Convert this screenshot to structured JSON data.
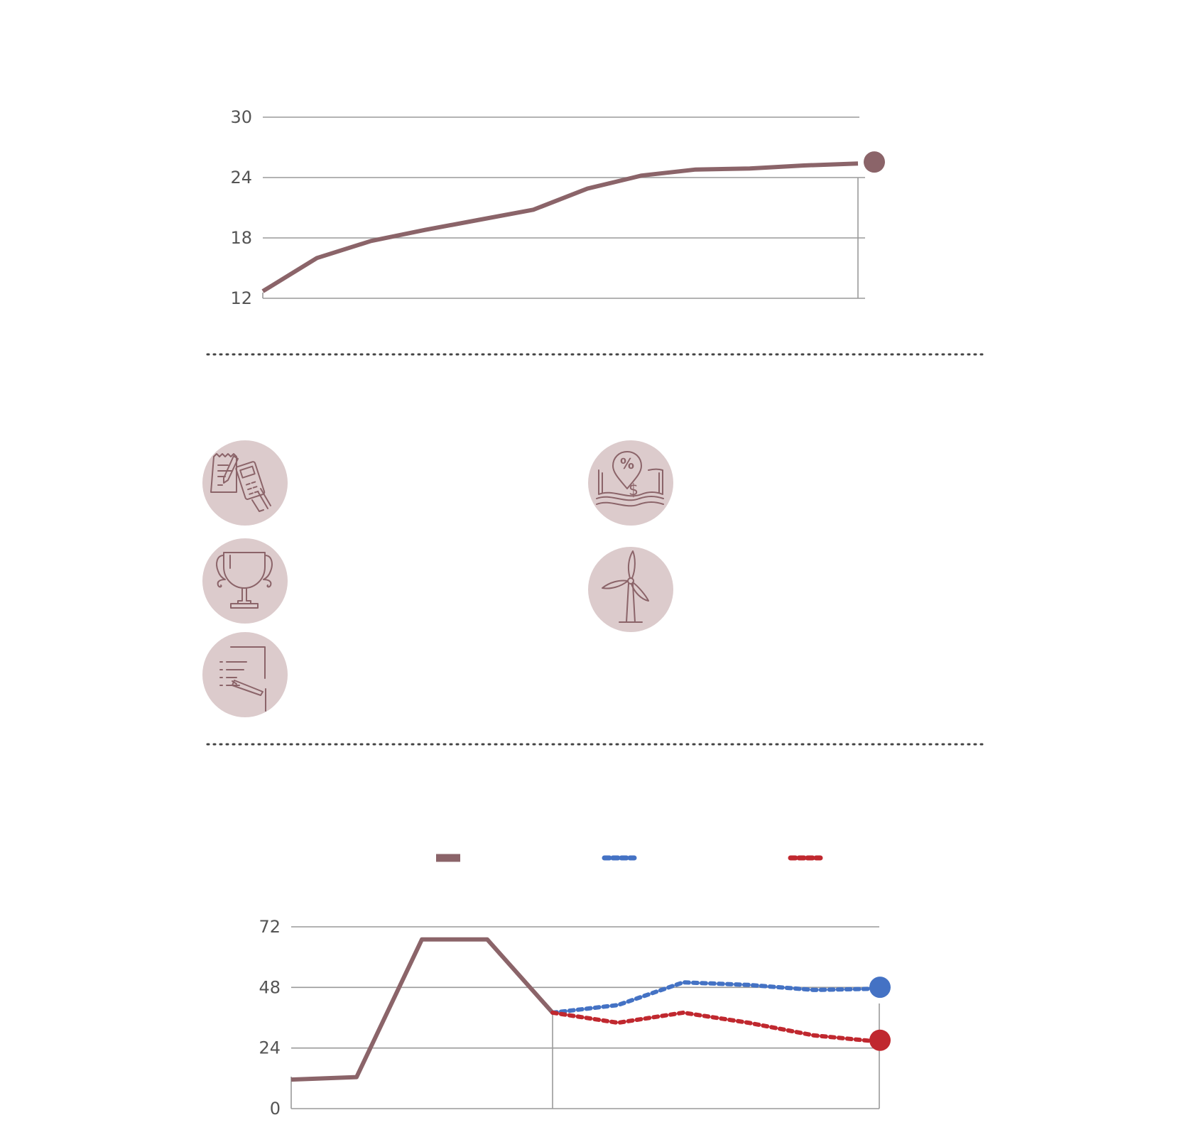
{
  "palette": {
    "primary": "#8b6469",
    "blue": "#4472c4",
    "red": "#c0282f",
    "icon_bg": "#dccbcc",
    "grid": "#9a9a9a"
  },
  "chart_data": [
    {
      "type": "line",
      "title": "",
      "xlabel": "",
      "ylabel": "",
      "ylim": [
        12,
        30
      ],
      "yticks": [
        "30",
        "24",
        "18",
        "12"
      ],
      "grid": true,
      "series": [
        {
          "color": "#8b6469",
          "style": "solid",
          "end_marker": true,
          "x": [
            0,
            1,
            2,
            3,
            4,
            5,
            6,
            7,
            8,
            9,
            10,
            11
          ],
          "values": [
            12.7,
            16.0,
            17.7,
            18.8,
            19.8,
            20.8,
            22.9,
            24.2,
            24.8,
            24.9,
            25.2,
            25.4
          ]
        }
      ]
    },
    {
      "type": "line",
      "title": "",
      "xlabel": "",
      "ylabel": "",
      "ylim": [
        0,
        72
      ],
      "yticks": [
        "72",
        "48",
        "24",
        "0"
      ],
      "grid": true,
      "legend": "top",
      "series": [
        {
          "color": "#8b6469",
          "style": "solid",
          "x": [
            0,
            1,
            2,
            3,
            4
          ],
          "values": [
            11.5,
            12.5,
            67,
            67,
            38
          ]
        },
        {
          "color": "#4472c4",
          "style": "dotted",
          "end_marker": true,
          "x": [
            4,
            5,
            6,
            7,
            8,
            9
          ],
          "values": [
            38,
            41,
            50,
            49,
            47,
            47.5
          ]
        },
        {
          "color": "#c0282f",
          "style": "dotted",
          "end_marker": true,
          "x": [
            4,
            5,
            6,
            7,
            8,
            9
          ],
          "values": [
            38,
            34,
            38,
            34,
            29,
            26.5
          ]
        }
      ]
    }
  ],
  "icons": [
    {
      "name": "receipt-calculator-icon"
    },
    {
      "name": "trophy-icon"
    },
    {
      "name": "document-pen-icon"
    },
    {
      "name": "percent-pin-money-icon"
    },
    {
      "name": "wind-turbine-icon"
    }
  ]
}
